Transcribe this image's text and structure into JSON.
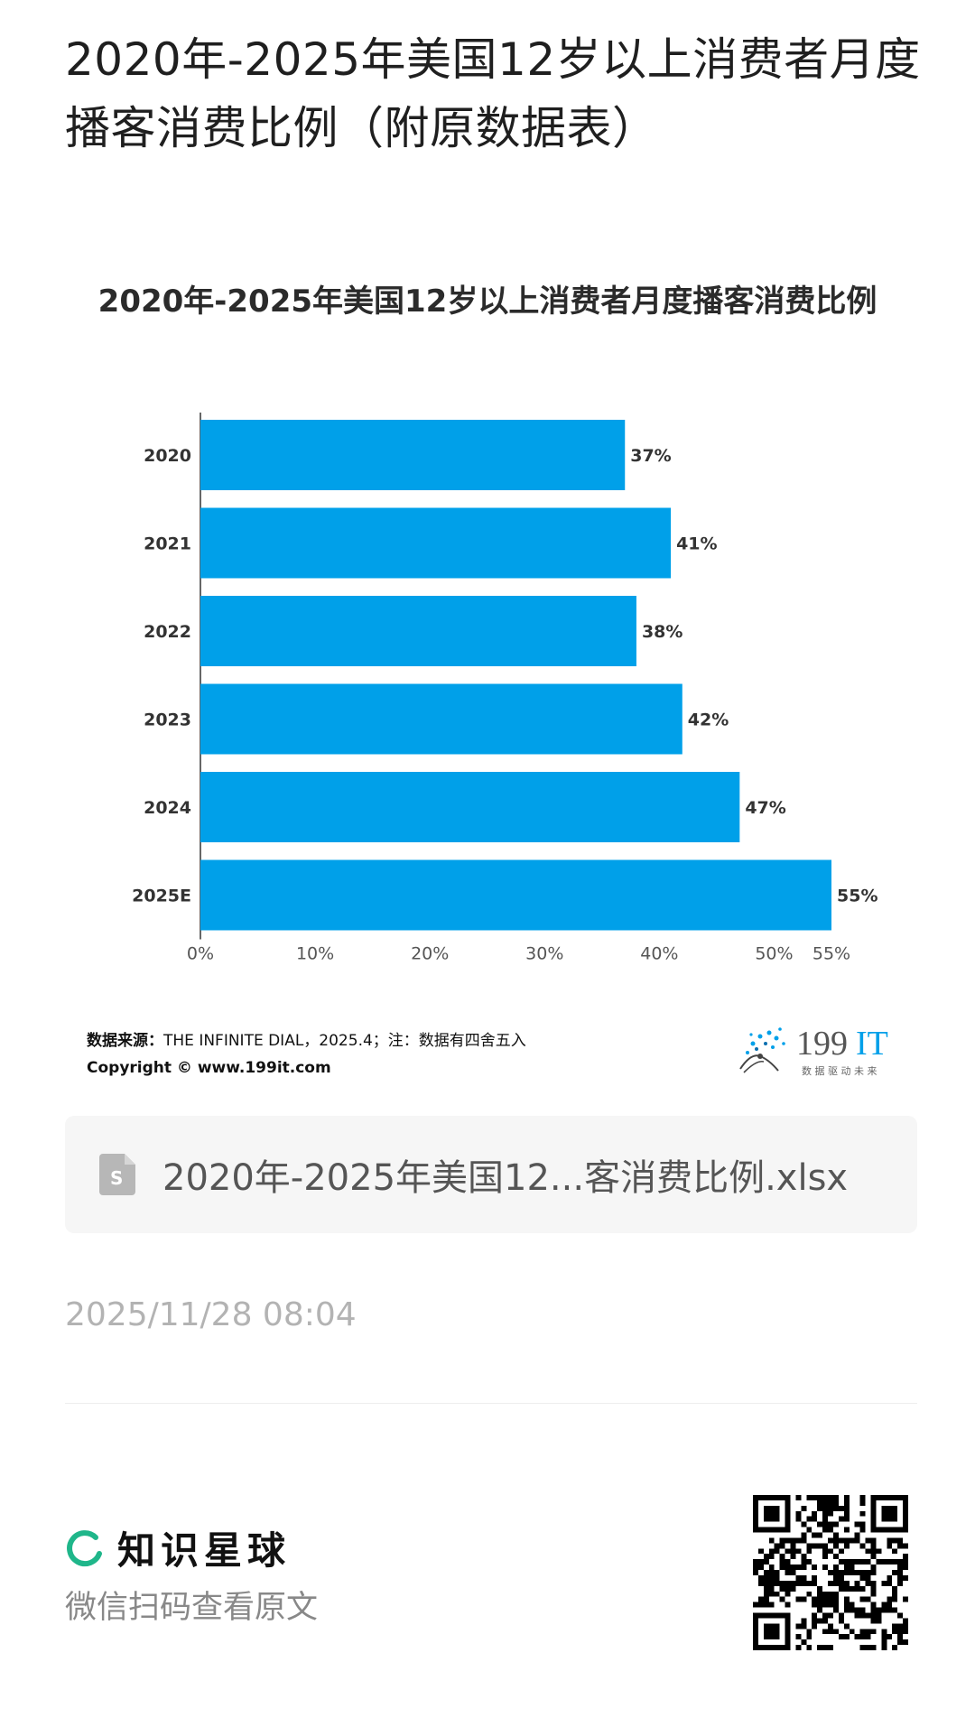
{
  "page": {
    "title": "2020年-2025年美国12岁以上消费者月度播客消费比例（附原数据表）"
  },
  "chart_data": {
    "type": "bar",
    "orientation": "horizontal",
    "title": "2020年-2025年美国12岁以上消费者月度播客消费比例",
    "categories": [
      "2020",
      "2021",
      "2022",
      "2023",
      "2024",
      "2025E"
    ],
    "values": [
      37,
      41,
      38,
      42,
      47,
      55
    ],
    "value_labels": [
      "37%",
      "41%",
      "38%",
      "42%",
      "47%",
      "55%"
    ],
    "x_ticks": [
      "0%",
      "10%",
      "20%",
      "30%",
      "40%",
      "50%",
      "55%"
    ],
    "x_tick_values": [
      0,
      10,
      20,
      30,
      40,
      50,
      55
    ],
    "xlim": [
      0,
      55
    ],
    "bar_color": "#00a0e9",
    "grid": false
  },
  "source": {
    "label": "数据来源：",
    "text": "THE INFINITE DIAL，2025.4；注：数据有四舍五入",
    "copyright": "Copyright © www.199it.com"
  },
  "brand": {
    "name": "199IT",
    "tagline": "数 据 驱 动 未 来",
    "color": "#00a0e9"
  },
  "attachment": {
    "file_name": "2020年-2025年美国12...客消费比例.xlsx",
    "icon": "spreadsheet-file-icon"
  },
  "meta": {
    "timestamp": "2025/11/28 08:04"
  },
  "footer": {
    "brand_name": "知识星球",
    "brand_icon": "zsxq-logo-icon",
    "subtitle": "微信扫码查看原文",
    "accent": "#1fb68a"
  }
}
